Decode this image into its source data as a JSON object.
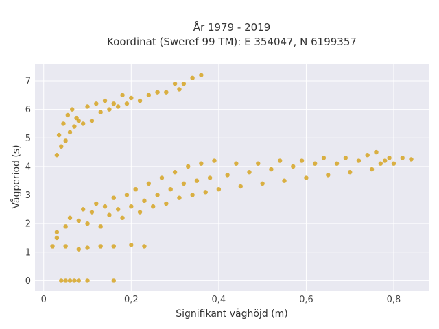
{
  "chart_data": {
    "type": "scatter",
    "title": "År 1979 - 2019",
    "subtitle": "Koordinat (Sweref 99 TM): E 354047, N 6199357",
    "xlabel": "Signifikant våghöjd (m)",
    "ylabel": "Vågperiod (s)",
    "xlim": [
      -0.02,
      0.88
    ],
    "ylim": [
      -0.35,
      7.6
    ],
    "xticks": [
      0,
      0.2,
      0.4,
      0.6,
      0.8
    ],
    "xtick_labels": [
      "0",
      "0,2",
      "0,4",
      "0,6",
      "0,8"
    ],
    "yticks": [
      0,
      1,
      2,
      3,
      4,
      5,
      6,
      7
    ],
    "ytick_labels": [
      "0",
      "1",
      "2",
      "3",
      "4",
      "5",
      "6",
      "7"
    ],
    "grid": true,
    "legend": "none",
    "marker_color": "#d4a017",
    "background_color": "#e9e9f1",
    "series": [
      {
        "values": [
          [
            0.04,
            0
          ],
          [
            0.05,
            0
          ],
          [
            0.06,
            0
          ],
          [
            0.07,
            0
          ],
          [
            0.08,
            0
          ],
          [
            0.1,
            0
          ],
          [
            0.16,
            0
          ],
          [
            0.02,
            1.2
          ],
          [
            0.03,
            1.5
          ],
          [
            0.05,
            1.2
          ],
          [
            0.08,
            1.1
          ],
          [
            0.1,
            1.15
          ],
          [
            0.13,
            1.2
          ],
          [
            0.16,
            1.2
          ],
          [
            0.2,
            1.25
          ],
          [
            0.23,
            1.2
          ],
          [
            0.03,
            1.7
          ],
          [
            0.05,
            1.9
          ],
          [
            0.06,
            2.2
          ],
          [
            0.08,
            2.1
          ],
          [
            0.09,
            2.5
          ],
          [
            0.1,
            2.0
          ],
          [
            0.11,
            2.4
          ],
          [
            0.12,
            2.7
          ],
          [
            0.13,
            1.9
          ],
          [
            0.14,
            2.6
          ],
          [
            0.15,
            2.3
          ],
          [
            0.16,
            2.9
          ],
          [
            0.17,
            2.5
          ],
          [
            0.18,
            2.2
          ],
          [
            0.19,
            3.0
          ],
          [
            0.2,
            2.6
          ],
          [
            0.21,
            3.2
          ],
          [
            0.22,
            2.4
          ],
          [
            0.23,
            2.8
          ],
          [
            0.24,
            3.4
          ],
          [
            0.25,
            2.6
          ],
          [
            0.26,
            3.0
          ],
          [
            0.27,
            3.6
          ],
          [
            0.28,
            2.7
          ],
          [
            0.29,
            3.2
          ],
          [
            0.3,
            3.8
          ],
          [
            0.31,
            2.9
          ],
          [
            0.32,
            3.4
          ],
          [
            0.33,
            4.0
          ],
          [
            0.34,
            3.0
          ],
          [
            0.35,
            3.5
          ],
          [
            0.36,
            4.1
          ],
          [
            0.37,
            3.1
          ],
          [
            0.38,
            3.6
          ],
          [
            0.39,
            4.2
          ],
          [
            0.4,
            3.2
          ],
          [
            0.42,
            3.7
          ],
          [
            0.44,
            4.1
          ],
          [
            0.45,
            3.3
          ],
          [
            0.47,
            3.8
          ],
          [
            0.49,
            4.1
          ],
          [
            0.5,
            3.4
          ],
          [
            0.52,
            3.9
          ],
          [
            0.54,
            4.2
          ],
          [
            0.55,
            3.5
          ],
          [
            0.57,
            4.0
          ],
          [
            0.59,
            4.2
          ],
          [
            0.6,
            3.6
          ],
          [
            0.62,
            4.1
          ],
          [
            0.64,
            4.3
          ],
          [
            0.65,
            3.7
          ],
          [
            0.67,
            4.1
          ],
          [
            0.69,
            4.3
          ],
          [
            0.7,
            3.8
          ],
          [
            0.72,
            4.2
          ],
          [
            0.74,
            4.4
          ],
          [
            0.75,
            3.9
          ],
          [
            0.76,
            4.5
          ],
          [
            0.77,
            4.1
          ],
          [
            0.78,
            4.2
          ],
          [
            0.79,
            4.3
          ],
          [
            0.8,
            4.1
          ],
          [
            0.82,
            4.3
          ],
          [
            0.84,
            4.25
          ],
          [
            0.03,
            4.4
          ],
          [
            0.035,
            5.1
          ],
          [
            0.04,
            4.7
          ],
          [
            0.045,
            5.5
          ],
          [
            0.05,
            4.9
          ],
          [
            0.055,
            5.8
          ],
          [
            0.06,
            5.2
          ],
          [
            0.065,
            6.0
          ],
          [
            0.07,
            5.4
          ],
          [
            0.075,
            5.7
          ],
          [
            0.08,
            5.6
          ],
          [
            0.09,
            5.5
          ],
          [
            0.1,
            6.1
          ],
          [
            0.11,
            5.6
          ],
          [
            0.12,
            6.2
          ],
          [
            0.13,
            5.9
          ],
          [
            0.14,
            6.3
          ],
          [
            0.15,
            6.0
          ],
          [
            0.16,
            6.2
          ],
          [
            0.17,
            6.1
          ],
          [
            0.18,
            6.5
          ],
          [
            0.19,
            6.2
          ],
          [
            0.2,
            6.4
          ],
          [
            0.22,
            6.3
          ],
          [
            0.24,
            6.5
          ],
          [
            0.26,
            6.6
          ],
          [
            0.28,
            6.6
          ],
          [
            0.3,
            6.9
          ],
          [
            0.31,
            6.7
          ],
          [
            0.32,
            6.9
          ],
          [
            0.34,
            7.1
          ],
          [
            0.36,
            7.2
          ]
        ]
      }
    ]
  }
}
